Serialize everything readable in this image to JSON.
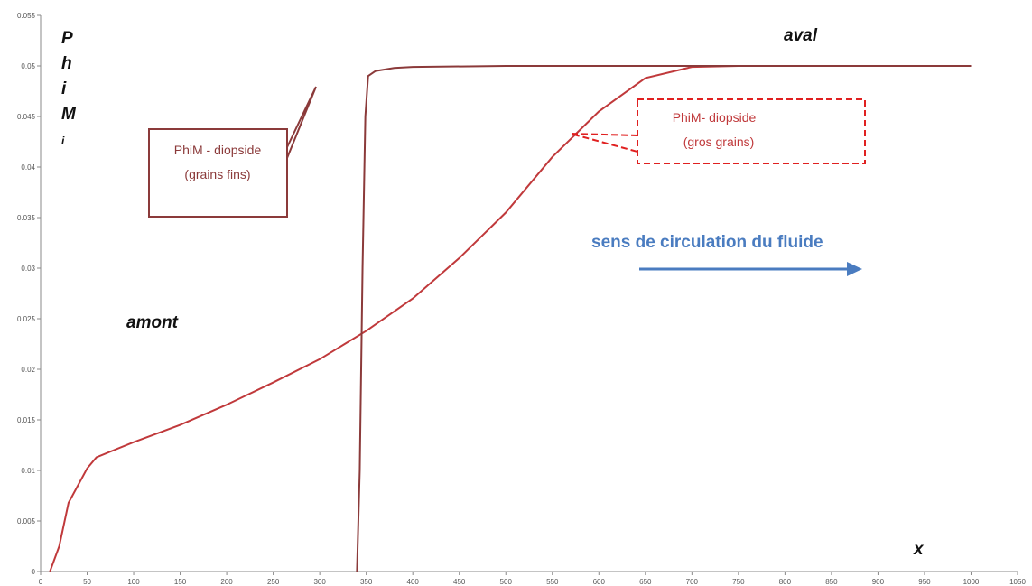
{
  "chart_data": {
    "type": "line",
    "ylabel": "PhiMi",
    "xlabel": "x",
    "annotations": {
      "aval": "aval",
      "amont": "amont",
      "flow": "sens de circulation du fluide",
      "fine": [
        "PhiM - diopside",
        "(grains fins)"
      ],
      "coarse": [
        "PhiM- diopside",
        "(gros grains)"
      ]
    },
    "xlim": [
      0,
      1050
    ],
    "ylim": [
      0,
      0.055
    ],
    "xticks": [
      0,
      50,
      100,
      150,
      200,
      250,
      300,
      350,
      400,
      450,
      500,
      550,
      600,
      650,
      700,
      750,
      800,
      850,
      900,
      950,
      1000,
      1050
    ],
    "yticks": [
      0,
      0.005,
      0.01,
      0.015,
      0.02,
      0.025,
      0.03,
      0.035,
      0.04,
      0.045,
      0.05,
      0.055
    ],
    "series": [
      {
        "name": "PhiM - diopside (grains fins)",
        "color": "#8b3a3a",
        "x": [
          340,
          343,
          346,
          349,
          352,
          360,
          380,
          400,
          500,
          1000
        ],
        "values": [
          0,
          0.01,
          0.03,
          0.045,
          0.049,
          0.0495,
          0.0498,
          0.0499,
          0.05,
          0.05
        ]
      },
      {
        "name": "PhiM- diopside (gros grains)",
        "color": "#c0393b",
        "x": [
          10,
          20,
          30,
          50,
          60,
          100,
          150,
          200,
          250,
          300,
          350,
          400,
          450,
          500,
          550,
          600,
          650,
          700,
          750,
          1000
        ],
        "values": [
          0,
          0.0025,
          0.0068,
          0.0102,
          0.0113,
          0.0128,
          0.0145,
          0.0165,
          0.0187,
          0.021,
          0.0238,
          0.027,
          0.031,
          0.0355,
          0.041,
          0.0455,
          0.0488,
          0.0499,
          0.05,
          0.05
        ]
      }
    ]
  }
}
